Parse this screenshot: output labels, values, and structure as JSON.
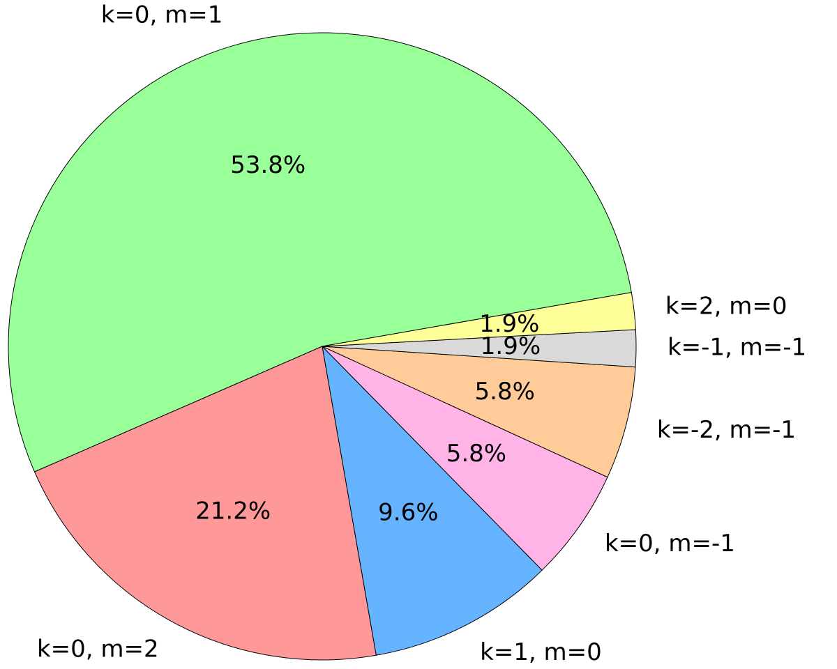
{
  "chart_data": {
    "type": "pie",
    "categories": [
      "k=0, m=1",
      "k=0, m=2",
      "k=1, m=0",
      "k=0, m=-1",
      "k=-2, m=-1",
      "k=-1, m=-1",
      "k=2, m=0"
    ],
    "values": [
      53.8,
      21.2,
      9.6,
      5.8,
      5.8,
      1.9,
      1.9
    ],
    "value_labels": [
      "53.8%",
      "21.2%",
      "9.6%",
      "5.8%",
      "5.8%",
      "1.9%",
      "1.9%"
    ],
    "colors": [
      "#99ff99",
      "#ff9999",
      "#66b3ff",
      "#ffb3e6",
      "#ffcc99",
      "#d9d9d9",
      "#ffff99"
    ]
  }
}
